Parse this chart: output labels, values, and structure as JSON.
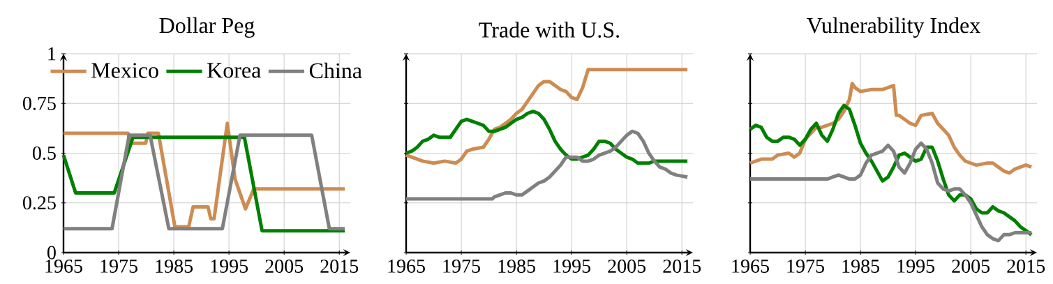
{
  "chart_data": [
    {
      "type": "line",
      "title": "Dollar Peg",
      "xlim": [
        1965,
        2017
      ],
      "ylim": [
        0,
        1
      ],
      "xticks": [
        1965,
        1975,
        1985,
        1995,
        2005,
        2015
      ],
      "yticks": [
        0,
        0.25,
        0.5,
        0.75,
        1
      ],
      "grid": true,
      "legend": "top",
      "line_style": "solid",
      "series": [
        {
          "name": "Mexico",
          "color": "#cd8c52",
          "x": [
            1965,
            1976.7,
            1977.2,
            1979.9,
            1980.3,
            1982.2,
            1985.2,
            1987.7,
            1988.5,
            1991.2,
            1991.7,
            1992.3,
            1994.7,
            1996.1,
            1998,
            1999.5,
            2016
          ],
          "values": [
            0.6,
            0.6,
            0.55,
            0.55,
            0.6,
            0.6,
            0.13,
            0.13,
            0.23,
            0.23,
            0.17,
            0.17,
            0.65,
            0.37,
            0.22,
            0.32,
            0.32
          ]
        },
        {
          "name": "Korea",
          "color": "#008000",
          "x": [
            1965,
            1967.2,
            1974.2,
            1977.6,
            1997.8,
            2001,
            2016
          ],
          "values": [
            0.49,
            0.3,
            0.3,
            0.58,
            0.58,
            0.11,
            0.11
          ]
        },
        {
          "name": "China",
          "color": "#808080",
          "x": [
            1965,
            1973.8,
            1976.9,
            1980.7,
            1984.1,
            1993.8,
            1997,
            2010,
            2013.2,
            2016
          ],
          "values": [
            0.12,
            0.12,
            0.59,
            0.59,
            0.12,
            0.12,
            0.59,
            0.59,
            0.12,
            0.12
          ]
        }
      ]
    },
    {
      "type": "line",
      "title": "Trade with U.S.",
      "xlim": [
        1965,
        2017
      ],
      "ylim": [
        0,
        1
      ],
      "xticks": [
        1965,
        1975,
        1985,
        1995,
        2005,
        2015
      ],
      "yticks": [
        0,
        0.25,
        0.5,
        0.75,
        1
      ],
      "grid": true,
      "tick_labels": "x",
      "line_style": "solid",
      "series": [
        {
          "color": "#cd8c52",
          "x": [
            1965,
            1966,
            1968,
            1970,
            1972,
            1974,
            1975,
            1976,
            1977,
            1979,
            1980,
            1981,
            1982,
            1984,
            1985,
            1986,
            1987,
            1988,
            1989,
            1990,
            1991,
            1992,
            1993,
            1994,
            1995,
            1996,
            1997,
            1998,
            2016
          ],
          "values": [
            0.49,
            0.48,
            0.46,
            0.45,
            0.46,
            0.45,
            0.47,
            0.51,
            0.52,
            0.53,
            0.57,
            0.62,
            0.63,
            0.67,
            0.7,
            0.72,
            0.76,
            0.8,
            0.84,
            0.86,
            0.86,
            0.84,
            0.82,
            0.81,
            0.78,
            0.77,
            0.83,
            0.92,
            0.92
          ]
        },
        {
          "color": "#008000",
          "x": [
            1965,
            1966,
            1967,
            1968,
            1969,
            1970,
            1971,
            1972,
            1973,
            1974,
            1975,
            1976,
            1977,
            1978,
            1979,
            1980,
            1981,
            1982,
            1983,
            1984,
            1985,
            1986,
            1987,
            1988,
            1989,
            1990,
            1991,
            1992,
            1993,
            1994,
            1995,
            1996,
            1997,
            1998,
            1999,
            2000,
            2001,
            2002,
            2003,
            2004,
            2005,
            2006,
            2007,
            2008,
            2009,
            2010,
            2011,
            2012,
            2014,
            2016
          ],
          "values": [
            0.5,
            0.51,
            0.53,
            0.56,
            0.57,
            0.59,
            0.58,
            0.58,
            0.58,
            0.62,
            0.66,
            0.67,
            0.66,
            0.65,
            0.64,
            0.61,
            0.61,
            0.62,
            0.63,
            0.65,
            0.67,
            0.68,
            0.7,
            0.71,
            0.7,
            0.67,
            0.62,
            0.56,
            0.52,
            0.49,
            0.47,
            0.47,
            0.48,
            0.49,
            0.52,
            0.56,
            0.56,
            0.55,
            0.52,
            0.5,
            0.48,
            0.47,
            0.45,
            0.45,
            0.45,
            0.46,
            0.46,
            0.46,
            0.46,
            0.46
          ]
        },
        {
          "color": "#808080",
          "x": [
            1965,
            1980.6,
            1981,
            1982,
            1983,
            1984,
            1985,
            1986,
            1987,
            1988,
            1989,
            1990,
            1991,
            1992,
            1993,
            1994,
            1995,
            1996,
            1997,
            1998,
            1999,
            2000,
            2001,
            2002,
            2003,
            2004,
            2005,
            2006,
            2007,
            2008,
            2009,
            2010,
            2011,
            2012,
            2013,
            2014,
            2016
          ],
          "values": [
            0.27,
            0.27,
            0.28,
            0.29,
            0.3,
            0.3,
            0.29,
            0.29,
            0.31,
            0.33,
            0.35,
            0.36,
            0.38,
            0.41,
            0.44,
            0.48,
            0.48,
            0.48,
            0.46,
            0.46,
            0.47,
            0.49,
            0.5,
            0.51,
            0.53,
            0.56,
            0.59,
            0.61,
            0.6,
            0.56,
            0.5,
            0.46,
            0.43,
            0.42,
            0.4,
            0.39,
            0.38
          ]
        }
      ]
    },
    {
      "type": "line",
      "title": "Vulnerability Index",
      "xlim": [
        1965,
        2017
      ],
      "ylim": [
        0,
        1
      ],
      "xticks": [
        1965,
        1975,
        1985,
        1995,
        2005,
        2015
      ],
      "yticks": [
        0,
        0.25,
        0.5,
        0.75,
        1
      ],
      "grid": true,
      "tick_labels": "x",
      "line_style": "solid",
      "series": [
        {
          "color": "#cd8c52",
          "x": [
            1965,
            1967,
            1969,
            1970,
            1972,
            1973,
            1974,
            1975,
            1976,
            1977,
            1978,
            1980,
            1981,
            1982,
            1983,
            1983.5,
            1984,
            1985,
            1987,
            1989,
            1991,
            1991.5,
            1992,
            1993,
            1994,
            1995,
            1996,
            1998,
            1999,
            2000,
            2001,
            2002,
            2003,
            2004,
            2005,
            2006,
            2008,
            2009,
            2010,
            2011,
            2012,
            2013,
            2014,
            2015,
            2016
          ],
          "values": [
            0.45,
            0.47,
            0.47,
            0.49,
            0.5,
            0.48,
            0.5,
            0.57,
            0.6,
            0.63,
            0.63,
            0.65,
            0.67,
            0.71,
            0.77,
            0.85,
            0.83,
            0.81,
            0.82,
            0.82,
            0.84,
            0.69,
            0.69,
            0.67,
            0.65,
            0.64,
            0.69,
            0.7,
            0.65,
            0.62,
            0.59,
            0.53,
            0.49,
            0.46,
            0.45,
            0.44,
            0.45,
            0.45,
            0.43,
            0.41,
            0.4,
            0.42,
            0.43,
            0.44,
            0.43
          ]
        },
        {
          "color": "#008000",
          "x": [
            1965,
            1966,
            1967,
            1968,
            1969,
            1970,
            1971,
            1972,
            1973,
            1974,
            1975,
            1976,
            1977,
            1978,
            1979,
            1980,
            1981,
            1982,
            1983,
            1984,
            1985,
            1986,
            1987,
            1988,
            1989,
            1990,
            1991,
            1992,
            1993,
            1994,
            1995,
            1996,
            1997,
            1998,
            1999,
            2000,
            2001,
            2002,
            2003,
            2004,
            2005,
            2006,
            2007,
            2008,
            2009,
            2010,
            2011,
            2012,
            2013,
            2014,
            2015,
            2016
          ],
          "values": [
            0.62,
            0.64,
            0.63,
            0.58,
            0.56,
            0.56,
            0.58,
            0.58,
            0.57,
            0.54,
            0.57,
            0.62,
            0.65,
            0.59,
            0.56,
            0.62,
            0.7,
            0.74,
            0.72,
            0.64,
            0.55,
            0.5,
            0.46,
            0.41,
            0.36,
            0.38,
            0.43,
            0.49,
            0.5,
            0.48,
            0.46,
            0.47,
            0.53,
            0.53,
            0.46,
            0.37,
            0.29,
            0.26,
            0.29,
            0.29,
            0.27,
            0.22,
            0.2,
            0.2,
            0.23,
            0.21,
            0.2,
            0.18,
            0.16,
            0.13,
            0.11,
            0.09
          ]
        },
        {
          "color": "#808080",
          "x": [
            1965,
            1978,
            1979,
            1980,
            1981,
            1982,
            1983,
            1984,
            1985,
            1986,
            1987,
            1988,
            1989,
            1990,
            1991,
            1992,
            1993,
            1994,
            1995,
            1996,
            1997,
            1998,
            1999,
            2000,
            2001,
            2002,
            2003,
            2004,
            2005,
            2006,
            2007,
            2008,
            2009,
            2010,
            2011,
            2012,
            2013,
            2014,
            2016
          ],
          "values": [
            0.37,
            0.37,
            0.37,
            0.38,
            0.39,
            0.38,
            0.37,
            0.37,
            0.39,
            0.45,
            0.49,
            0.5,
            0.51,
            0.54,
            0.51,
            0.43,
            0.4,
            0.45,
            0.52,
            0.55,
            0.52,
            0.45,
            0.35,
            0.32,
            0.31,
            0.32,
            0.32,
            0.29,
            0.25,
            0.19,
            0.13,
            0.09,
            0.07,
            0.06,
            0.09,
            0.09,
            0.1,
            0.1,
            0.1
          ]
        }
      ]
    }
  ]
}
